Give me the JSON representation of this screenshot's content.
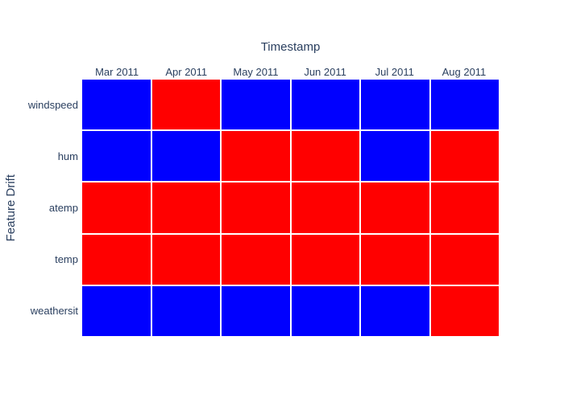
{
  "chart": {
    "title": "Timestamp",
    "ylabel": "Feature Drift"
  },
  "colors": {
    "drift": "#ff0000",
    "no_drift": "#0000ff",
    "text": "#2a3f5f",
    "background": "#ffffff",
    "gridline": "#ffffff"
  },
  "chart_data": {
    "type": "heatmap",
    "title": "Timestamp",
    "xlabel": "",
    "ylabel": "Feature Drift",
    "x_axis_side": "top",
    "legend_position": "none",
    "grid": "white 2px gaps between cells",
    "x": [
      "Mar 2011",
      "Apr 2011",
      "May 2011",
      "Jun 2011",
      "Jul 2011",
      "Aug 2011"
    ],
    "y": [
      "windspeed",
      "hum",
      "atemp",
      "temp",
      "weathersit"
    ],
    "z": [
      [
        0,
        1,
        0,
        0,
        0,
        0
      ],
      [
        0,
        0,
        1,
        1,
        0,
        1
      ],
      [
        1,
        1,
        1,
        1,
        1,
        1
      ],
      [
        1,
        1,
        1,
        1,
        1,
        1
      ],
      [
        0,
        0,
        0,
        0,
        0,
        1
      ]
    ],
    "z_colormap": {
      "0": "#0000ff",
      "1": "#ff0000"
    }
  }
}
